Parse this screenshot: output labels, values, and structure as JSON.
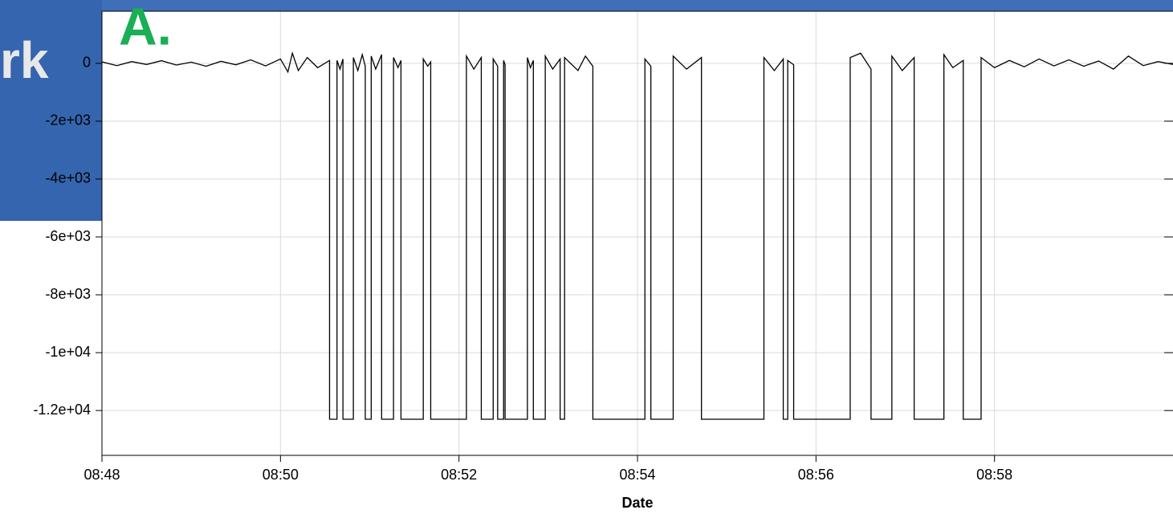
{
  "chart_data": {
    "type": "line",
    "annotations": [
      "rk",
      "A."
    ],
    "xlabel": "Date",
    "xlim": [
      "08:48:00",
      "09:00:00"
    ],
    "xticks": [
      "08:48",
      "08:50",
      "08:52",
      "08:54",
      "08:56",
      "08:58"
    ],
    "ylim": [
      -13550,
      1800
    ],
    "yticks": [
      0,
      {
        "value": -2000,
        "label": "-2e+03"
      },
      {
        "value": -4000,
        "label": "-4e+03"
      },
      {
        "value": -6000,
        "label": "-6e+03"
      },
      {
        "value": -8000,
        "label": "-8e+03"
      },
      {
        "value": -10000,
        "label": "-1e+04"
      },
      {
        "value": -12000,
        "label": "-1.2e+04"
      }
    ],
    "grid": true,
    "series": [
      {
        "color": "#000000",
        "x": [
          "08:48:00",
          "08:48:10",
          "08:48:20",
          "08:48:30",
          "08:48:40",
          "08:48:50",
          "08:49:00",
          "08:49:10",
          "08:49:20",
          "08:49:30",
          "08:49:40",
          "08:49:50",
          "08:50:00",
          "08:50:05",
          "08:50:08",
          "08:50:12",
          "08:50:18",
          "08:50:25",
          "08:50:33",
          "08:50:33",
          "08:50:38",
          "08:50:38",
          "08:50:40",
          "08:50:42",
          "08:50:42",
          "08:50:49",
          "08:50:49",
          "08:50:52",
          "08:50:55",
          "08:50:57",
          "08:50:57",
          "08:51:01",
          "08:51:01",
          "08:51:04",
          "08:51:08",
          "08:51:08",
          "08:51:16",
          "08:51:16",
          "08:51:19",
          "08:51:21",
          "08:51:21",
          "08:51:36",
          "08:51:36",
          "08:51:39",
          "08:51:41",
          "08:51:41",
          "08:52:05",
          "08:52:05",
          "08:52:10",
          "08:52:15",
          "08:52:15",
          "08:52:23",
          "08:52:23",
          "08:52:26",
          "08:52:26",
          "08:52:30",
          "08:52:30",
          "08:52:31",
          "08:52:31",
          "08:52:46",
          "08:52:46",
          "08:52:48",
          "08:52:50",
          "08:52:50",
          "08:52:58",
          "08:52:58",
          "08:53:03",
          "08:53:08",
          "08:53:08",
          "08:53:11",
          "08:53:11",
          "08:53:20",
          "08:53:25",
          "08:53:30",
          "08:53:30",
          "08:54:05",
          "08:54:05",
          "08:54:09",
          "08:54:09",
          "08:54:24",
          "08:54:24",
          "08:54:33",
          "08:54:43",
          "08:54:43",
          "08:55:25",
          "08:55:25",
          "08:55:32",
          "08:55:38",
          "08:55:38",
          "08:55:41",
          "08:55:41",
          "08:55:45",
          "08:55:45",
          "08:56:23",
          "08:56:23",
          "08:56:30",
          "08:56:37",
          "08:56:37",
          "08:56:51",
          "08:56:51",
          "08:56:58",
          "08:57:06",
          "08:57:06",
          "08:57:26",
          "08:57:26",
          "08:57:32",
          "08:57:39",
          "08:57:39",
          "08:57:51",
          "08:57:51",
          "08:58:00",
          "08:58:10",
          "08:58:20",
          "08:58:30",
          "08:58:40",
          "08:58:50",
          "08:59:00",
          "08:59:10",
          "08:59:20",
          "08:59:30",
          "08:59:40",
          "08:59:50",
          "09:00:00"
        ],
        "values": [
          50,
          -80,
          60,
          -40,
          90,
          -60,
          40,
          -100,
          70,
          -50,
          120,
          -90,
          150,
          -300,
          350,
          -250,
          200,
          -150,
          100,
          -12300,
          -12300,
          100,
          -200,
          150,
          -12300,
          -12300,
          200,
          -250,
          300,
          -100,
          -12300,
          -12300,
          250,
          -200,
          300,
          -12300,
          -12300,
          200,
          -150,
          100,
          -12300,
          -12300,
          150,
          -100,
          50,
          -12300,
          -12300,
          250,
          -200,
          200,
          -12300,
          -12300,
          150,
          -100,
          -12300,
          -12300,
          100,
          -50,
          -12300,
          -12300,
          200,
          -150,
          100,
          -12300,
          -12300,
          250,
          -200,
          150,
          -12300,
          -12300,
          200,
          -250,
          250,
          -100,
          -12300,
          -12300,
          150,
          -100,
          -12300,
          -12300,
          250,
          -200,
          200,
          -12300,
          -12300,
          200,
          -250,
          150,
          -12300,
          -12300,
          100,
          -50,
          -12300,
          -12300,
          200,
          350,
          -200,
          -12300,
          -12300,
          250,
          -250,
          200,
          -12300,
          -12300,
          300,
          -150,
          100,
          -12300,
          -12300,
          200,
          -150,
          100,
          -120,
          150,
          -90,
          120,
          -100,
          80,
          -200,
          250,
          -80,
          60,
          -40
        ]
      }
    ]
  }
}
